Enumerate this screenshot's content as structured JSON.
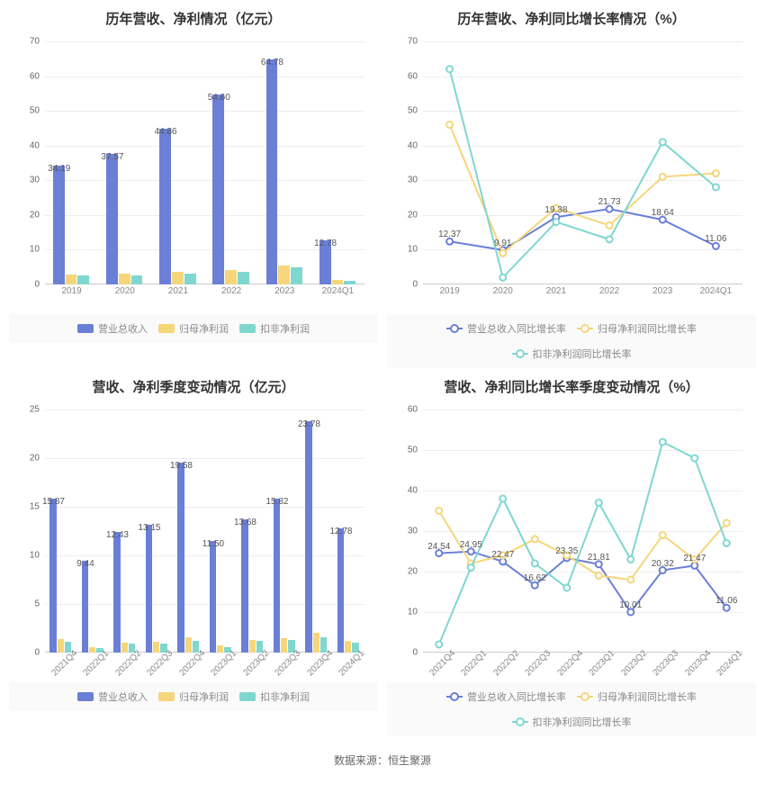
{
  "colors": {
    "series1": "#6b7fd7",
    "series2": "#f5d67a",
    "series3": "#7fd7d0",
    "grid": "#eeeeee",
    "axis": "#cccccc",
    "text": "#666666"
  },
  "source_label": "数据来源：恒生聚源",
  "chart_tl": {
    "title": "历年营收、净利情况（亿元）",
    "type": "bar",
    "ylim": [
      0,
      70
    ],
    "ytick_step": 10,
    "categories": [
      "2019",
      "2020",
      "2021",
      "2022",
      "2023",
      "2024Q1"
    ],
    "series": [
      {
        "name": "营业总收入",
        "color": "#6b7fd7",
        "values": [
          34.19,
          37.57,
          44.86,
          54.6,
          64.78,
          12.78
        ],
        "show_labels": true
      },
      {
        "name": "归母净利润",
        "color": "#f5d67a",
        "values": [
          2.8,
          3.0,
          3.6,
          4.2,
          5.5,
          1.2
        ],
        "show_labels": false
      },
      {
        "name": "扣非净利润",
        "color": "#7fd7d0",
        "values": [
          2.6,
          2.7,
          3.2,
          3.6,
          5.0,
          1.0
        ],
        "show_labels": false
      }
    ]
  },
  "chart_tr": {
    "title": "历年营收、净利同比增长率情况（%）",
    "type": "line",
    "ylim": [
      0,
      70
    ],
    "ytick_step": 10,
    "categories": [
      "2019",
      "2020",
      "2021",
      "2022",
      "2023",
      "2024Q1"
    ],
    "series": [
      {
        "name": "营业总收入同比增长率",
        "color": "#6b7fd7",
        "values": [
          12.37,
          9.91,
          19.38,
          21.73,
          18.64,
          11.06
        ],
        "show_labels": true
      },
      {
        "name": "归母净利润同比增长率",
        "color": "#f5d67a",
        "values": [
          46,
          9,
          22,
          17,
          31,
          32
        ],
        "show_labels": false
      },
      {
        "name": "扣非净利润同比增长率",
        "color": "#7fd7d0",
        "values": [
          62,
          2,
          18,
          13,
          41,
          28
        ],
        "show_labels": false
      }
    ]
  },
  "chart_bl": {
    "title": "营收、净利季度变动情况（亿元）",
    "type": "bar",
    "ylim": [
      0,
      25
    ],
    "ytick_step": 5,
    "categories": [
      "2021Q4",
      "2022Q1",
      "2022Q2",
      "2022Q3",
      "2022Q4",
      "2023Q1",
      "2023Q2",
      "2023Q3",
      "2023Q4",
      "2024Q1"
    ],
    "x_rotate": true,
    "series": [
      {
        "name": "营业总收入",
        "color": "#6b7fd7",
        "values": [
          15.87,
          9.44,
          12.43,
          13.15,
          19.58,
          11.5,
          13.68,
          15.82,
          23.78,
          12.78
        ],
        "show_labels": true
      },
      {
        "name": "归母净利润",
        "color": "#f5d67a",
        "values": [
          1.4,
          0.6,
          1.0,
          1.1,
          1.6,
          0.7,
          1.3,
          1.5,
          2.0,
          1.2
        ],
        "show_labels": false
      },
      {
        "name": "扣非净利润",
        "color": "#7fd7d0",
        "values": [
          1.1,
          0.5,
          0.9,
          0.9,
          1.2,
          0.6,
          1.2,
          1.3,
          1.6,
          1.0
        ],
        "show_labels": false
      }
    ]
  },
  "chart_br": {
    "title": "营收、净利同比增长率季度变动情况（%）",
    "type": "line",
    "ylim": [
      0,
      60
    ],
    "ytick_step": 10,
    "categories": [
      "2021Q4",
      "2022Q1",
      "2022Q2",
      "2022Q3",
      "2022Q4",
      "2023Q1",
      "2023Q2",
      "2023Q3",
      "2023Q4",
      "2024Q1"
    ],
    "x_rotate": true,
    "series": [
      {
        "name": "营业总收入同比增长率",
        "color": "#6b7fd7",
        "values": [
          24.54,
          24.95,
          22.47,
          16.62,
          23.35,
          21.81,
          10.01,
          20.32,
          21.47,
          11.06
        ],
        "show_labels": true
      },
      {
        "name": "归母净利润同比增长率",
        "color": "#f5d67a",
        "values": [
          35,
          22,
          24,
          28,
          24,
          19,
          18,
          29,
          23,
          32
        ],
        "show_labels": false
      },
      {
        "name": "扣非净利润同比增长率",
        "color": "#7fd7d0",
        "values": [
          2,
          21,
          38,
          22,
          16,
          37,
          23,
          52,
          48,
          27
        ],
        "show_labels": false
      }
    ]
  }
}
